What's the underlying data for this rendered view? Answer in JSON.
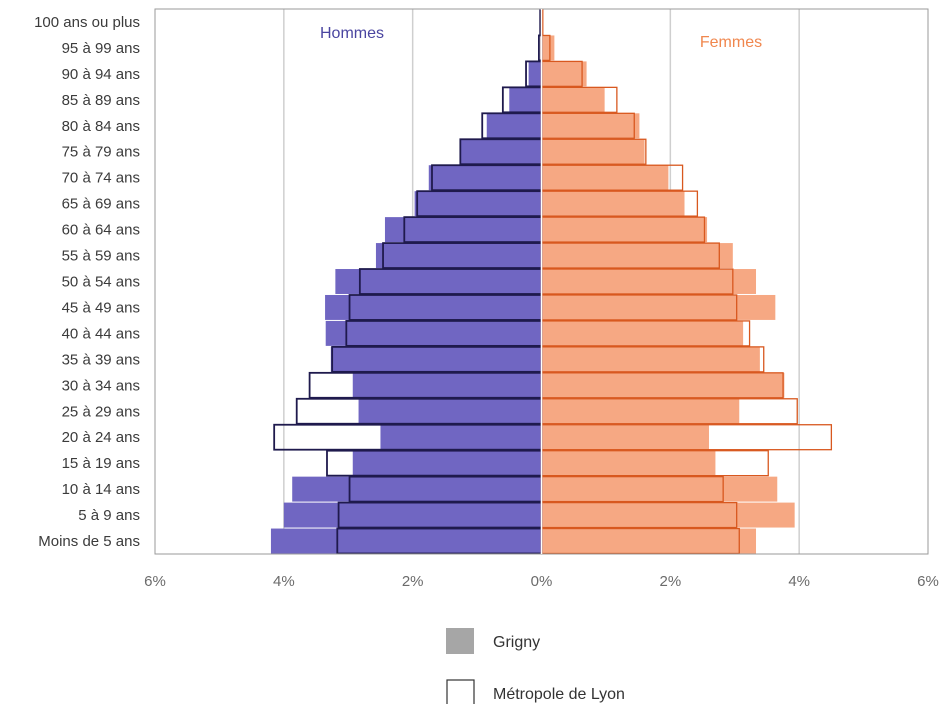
{
  "chart_data": {
    "type": "bar",
    "orientation": "horizontal-population-pyramid",
    "categories": [
      "100 ans ou plus",
      "95 à 99 ans",
      "90 à 94 ans",
      "85 à 89 ans",
      "80 à 84 ans",
      "75 à 79 ans",
      "70 à 74 ans",
      "65 à 69 ans",
      "60 à 64 ans",
      "55 à 59 ans",
      "50 à 54 ans",
      "45 à 49 ans",
      "40 à 44 ans",
      "35 à 39 ans",
      "30 à 34 ans",
      "25 à 29 ans",
      "20 à 24 ans",
      "15 à 19 ans",
      "10 à 14 ans",
      "5 à 9 ans",
      "Moins de 5 ans"
    ],
    "side_labels": {
      "left": "Hommes",
      "right": "Femmes"
    },
    "series": [
      {
        "name": "Grigny",
        "side": "Hommes",
        "values": [
          0.0,
          0.01,
          0.2,
          0.5,
          0.85,
          1.26,
          1.75,
          1.97,
          2.43,
          2.57,
          3.2,
          3.36,
          3.35,
          3.27,
          2.93,
          2.84,
          2.5,
          2.93,
          3.87,
          4.0,
          4.2
        ]
      },
      {
        "name": "Métropole de Lyon",
        "side": "Hommes",
        "values": [
          0.02,
          0.04,
          0.24,
          0.6,
          0.92,
          1.26,
          1.7,
          1.93,
          2.13,
          2.46,
          2.82,
          2.98,
          3.03,
          3.25,
          3.6,
          3.8,
          4.15,
          3.33,
          2.98,
          3.15,
          3.17
        ]
      },
      {
        "name": "Grigny",
        "side": "Femmes",
        "values": [
          0.0,
          0.2,
          0.7,
          0.98,
          1.52,
          1.6,
          1.97,
          2.22,
          2.57,
          2.97,
          3.33,
          3.63,
          3.13,
          3.39,
          3.77,
          3.07,
          2.6,
          2.7,
          3.66,
          3.93,
          3.33
        ]
      },
      {
        "name": "Métropole de Lyon",
        "side": "Femmes",
        "values": [
          0.02,
          0.13,
          0.63,
          1.17,
          1.44,
          1.62,
          2.19,
          2.42,
          2.53,
          2.76,
          2.97,
          3.03,
          3.23,
          3.45,
          3.75,
          3.97,
          4.5,
          3.52,
          2.82,
          3.03,
          3.07
        ]
      }
    ],
    "x_ticks": [
      "6%",
      "4%",
      "2%",
      "0%",
      "2%",
      "4%",
      "6%"
    ],
    "xlim": [
      -6,
      6
    ],
    "unit": "%",
    "colors": {
      "hommes_fill": "#7066c2",
      "hommes_outline": "#1f1a4d",
      "femmes_fill": "#f6a883",
      "femmes_outline": "#d8581f",
      "hommes_label": "#4a45a0",
      "femmes_label": "#f0874e",
      "legend_fill": "#a6a6a6",
      "grid": "#cfcfcf"
    },
    "legend": {
      "position": "bottom-center",
      "items": [
        {
          "label": "Grigny",
          "style": "filled"
        },
        {
          "label": "Métropole de Lyon",
          "style": "outline"
        }
      ]
    }
  }
}
